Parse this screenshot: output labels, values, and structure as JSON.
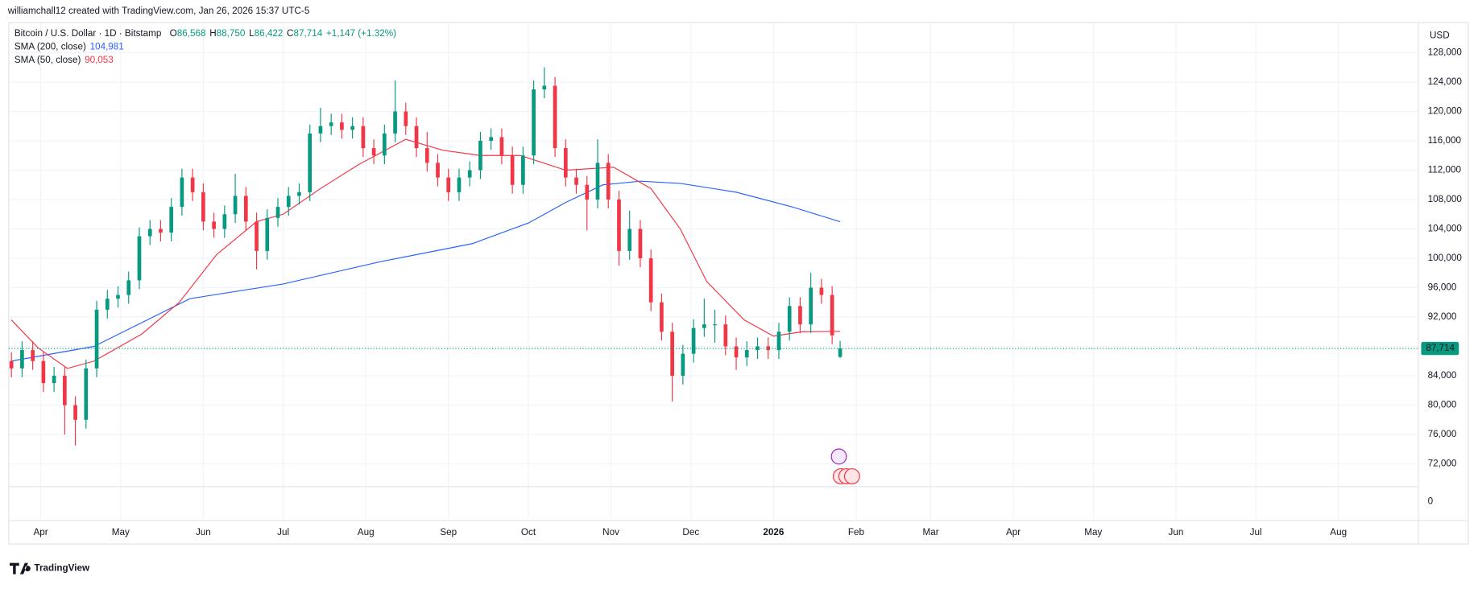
{
  "chart_data": {
    "type": "candlestick",
    "credit": "williamchall12 created with TradingView.com, Jan 26, 2026 15:37 UTC-5",
    "title": "Bitcoin / U.S. Dollar · 1D · Bitstamp",
    "quote": [
      {
        "key": "O",
        "label": "86,568"
      },
      {
        "key": "H",
        "label": "88,750"
      },
      {
        "key": "L",
        "label": "86,422"
      },
      {
        "key": "C",
        "label": "87,714"
      }
    ],
    "change": "+1,147 (+1.32%)",
    "currency": "USD",
    "axis_bottom_label": "0",
    "last_price_label": "87,714",
    "logo": "TradingView",
    "up_color": "#089981",
    "down_color": "#f23645",
    "x": [
      -11,
      -7,
      -3,
      1,
      5,
      9,
      13,
      17,
      21,
      25,
      29,
      33,
      37,
      41,
      45,
      49,
      53,
      57,
      61,
      65,
      69,
      73,
      77,
      81,
      85,
      89,
      93,
      97,
      101,
      105,
      109,
      113,
      117,
      121,
      125,
      129,
      133,
      137,
      141,
      145,
      149,
      153,
      157,
      161,
      165,
      169,
      173,
      177,
      181,
      185,
      189,
      193,
      197,
      201,
      205,
      209,
      213,
      217,
      221,
      225,
      229,
      233,
      237,
      241,
      245,
      249,
      253,
      257,
      261,
      265,
      269,
      273,
      277,
      281,
      285,
      289,
      293,
      297,
      300
    ],
    "open": [
      86000,
      85000,
      87500,
      86000,
      83000,
      84000,
      80000,
      78000,
      85000,
      93000,
      94500,
      95000,
      97000,
      103000,
      104000,
      103500,
      107000,
      111000,
      109000,
      105000,
      104000,
      106000,
      108500,
      105000,
      101000,
      105500,
      107000,
      108500,
      109000,
      117000,
      118000,
      118500,
      117500,
      118000,
      115000,
      114000,
      117000,
      120000,
      118000,
      115000,
      113000,
      111000,
      109000,
      111000,
      112000,
      116000,
      116500,
      114000,
      110000,
      114000,
      123000,
      123500,
      115000,
      111000,
      110000,
      108000,
      113000,
      108000,
      101000,
      104000,
      100000,
      94000,
      90000,
      84000,
      87000,
      90500,
      91000,
      91000,
      88000,
      86500,
      87500,
      88000,
      87500,
      90000,
      93500,
      91000,
      96000,
      95000,
      86568
    ],
    "high": [
      87200,
      88700,
      88700,
      87200,
      85200,
      85200,
      81200,
      86200,
      94200,
      95700,
      96200,
      98200,
      104200,
      105200,
      105200,
      108200,
      112200,
      112200,
      110200,
      106200,
      107200,
      111500,
      109700,
      106200,
      106700,
      108200,
      109700,
      110200,
      118200,
      120500,
      119700,
      119700,
      119200,
      119200,
      116200,
      118200,
      124200,
      121200,
      119200,
      117200,
      114200,
      112200,
      112200,
      113200,
      117200,
      117700,
      117700,
      115200,
      115200,
      124200,
      126000,
      124700,
      116200,
      112200,
      111200,
      116200,
      114200,
      109200,
      106500,
      105200,
      101200,
      95200,
      91200,
      88200,
      91700,
      94500,
      93000,
      92200,
      89200,
      88700,
      89200,
      89200,
      91200,
      94700,
      94700,
      98000,
      97200,
      96200,
      88750
    ],
    "low": [
      83800,
      83800,
      84800,
      81800,
      81800,
      76000,
      74500,
      76800,
      83800,
      91800,
      93300,
      93800,
      95800,
      101800,
      102300,
      102300,
      105800,
      107800,
      103800,
      102800,
      102800,
      104800,
      103800,
      98500,
      99800,
      104300,
      105800,
      107300,
      107800,
      115800,
      116800,
      116300,
      116300,
      113800,
      112800,
      112800,
      115800,
      116800,
      113800,
      111800,
      109800,
      107800,
      107800,
      109800,
      110800,
      114800,
      112800,
      108800,
      108800,
      112800,
      121800,
      113800,
      109800,
      108800,
      103800,
      106800,
      106800,
      99000,
      99800,
      98800,
      92800,
      88800,
      80500,
      82800,
      85800,
      89300,
      88500,
      86800,
      84800,
      85300,
      86300,
      86300,
      86300,
      88800,
      89800,
      89800,
      93800,
      88300,
      86422
    ],
    "close": [
      85000,
      87500,
      86000,
      83000,
      84000,
      80000,
      78000,
      85000,
      93000,
      94500,
      95000,
      97000,
      103000,
      104000,
      103500,
      107000,
      111000,
      109000,
      105000,
      104000,
      106000,
      108500,
      105000,
      101000,
      105500,
      107000,
      108500,
      109000,
      117000,
      118000,
      118500,
      117500,
      118000,
      115000,
      114000,
      117000,
      120000,
      118000,
      115000,
      113000,
      111000,
      109000,
      111000,
      112000,
      116000,
      116500,
      114000,
      110000,
      114000,
      123000,
      123500,
      115000,
      111000,
      110000,
      108000,
      113000,
      108000,
      101000,
      104000,
      100000,
      94000,
      90000,
      84000,
      87000,
      90500,
      91000,
      91000,
      88000,
      86500,
      87500,
      88000,
      87500,
      90000,
      93500,
      91000,
      96000,
      95000,
      89500,
      87714
    ],
    "series": [
      {
        "name": "SMA (200, close)",
        "last_label": "104,981",
        "color": "#2962ff",
        "x": [
          -11,
          20,
          56,
          91,
          127,
          162,
          183,
          197,
          211,
          225,
          240,
          261,
          282,
          300
        ],
        "values": [
          86000,
          88000,
          94500,
          96500,
          99500,
          102000,
          104800,
          107600,
          110000,
          110500,
          110200,
          109000,
          107000,
          104981
        ]
      },
      {
        "name": "SMA (50, close)",
        "last_label": "90,053",
        "color": "#f23645",
        "x": [
          -11,
          -1,
          10,
          20,
          38,
          52,
          66,
          81,
          91,
          105,
          119,
          137,
          151,
          165,
          180,
          197,
          215,
          229,
          240,
          250,
          264,
          275,
          286,
          300
        ],
        "values": [
          91600,
          87800,
          85000,
          86000,
          89700,
          94000,
          100500,
          105000,
          106000,
          109500,
          112700,
          116200,
          114700,
          114000,
          114000,
          112000,
          112400,
          109500,
          104000,
          96800,
          91600,
          89400,
          90000,
          90053
        ]
      }
    ],
    "xlim": [
      -12,
      517
    ],
    "xticks": [
      {
        "value": 0,
        "label": "Apr"
      },
      {
        "value": 30,
        "label": "May"
      },
      {
        "value": 61,
        "label": "Jun"
      },
      {
        "value": 91,
        "label": "Jul"
      },
      {
        "value": 122,
        "label": "Aug"
      },
      {
        "value": 153,
        "label": "Sep"
      },
      {
        "value": 183,
        "label": "Oct"
      },
      {
        "value": 214,
        "label": "Nov"
      },
      {
        "value": 244,
        "label": "Dec"
      },
      {
        "value": 275,
        "label": "2026"
      },
      {
        "value": 306,
        "label": "Feb"
      },
      {
        "value": 334,
        "label": "Mar"
      },
      {
        "value": 365,
        "label": "Apr"
      },
      {
        "value": 395,
        "label": "May"
      },
      {
        "value": 426,
        "label": "Jun"
      },
      {
        "value": 456,
        "label": "Jul"
      },
      {
        "value": 487,
        "label": "Aug"
      }
    ],
    "ylim": [
      68900,
      132100
    ],
    "yticks": [
      {
        "value": 72000,
        "label": "72,000"
      },
      {
        "value": 76000,
        "label": "76,000"
      },
      {
        "value": 80000,
        "label": "80,000"
      },
      {
        "value": 84000,
        "label": "84,000"
      },
      {
        "value": 88000,
        "label": "88,000"
      },
      {
        "value": 92000,
        "label": "92,000"
      },
      {
        "value": 96000,
        "label": "96,000"
      },
      {
        "value": 100000,
        "label": "100,000"
      },
      {
        "value": 104000,
        "label": "104,000"
      },
      {
        "value": 108000,
        "label": "108,000"
      },
      {
        "value": 112000,
        "label": "112,000"
      },
      {
        "value": 116000,
        "label": "116,000"
      },
      {
        "value": 120000,
        "label": "120,000"
      },
      {
        "value": 124000,
        "label": "124,000"
      },
      {
        "value": 128000,
        "label": "128,000"
      }
    ],
    "grid": true
  }
}
